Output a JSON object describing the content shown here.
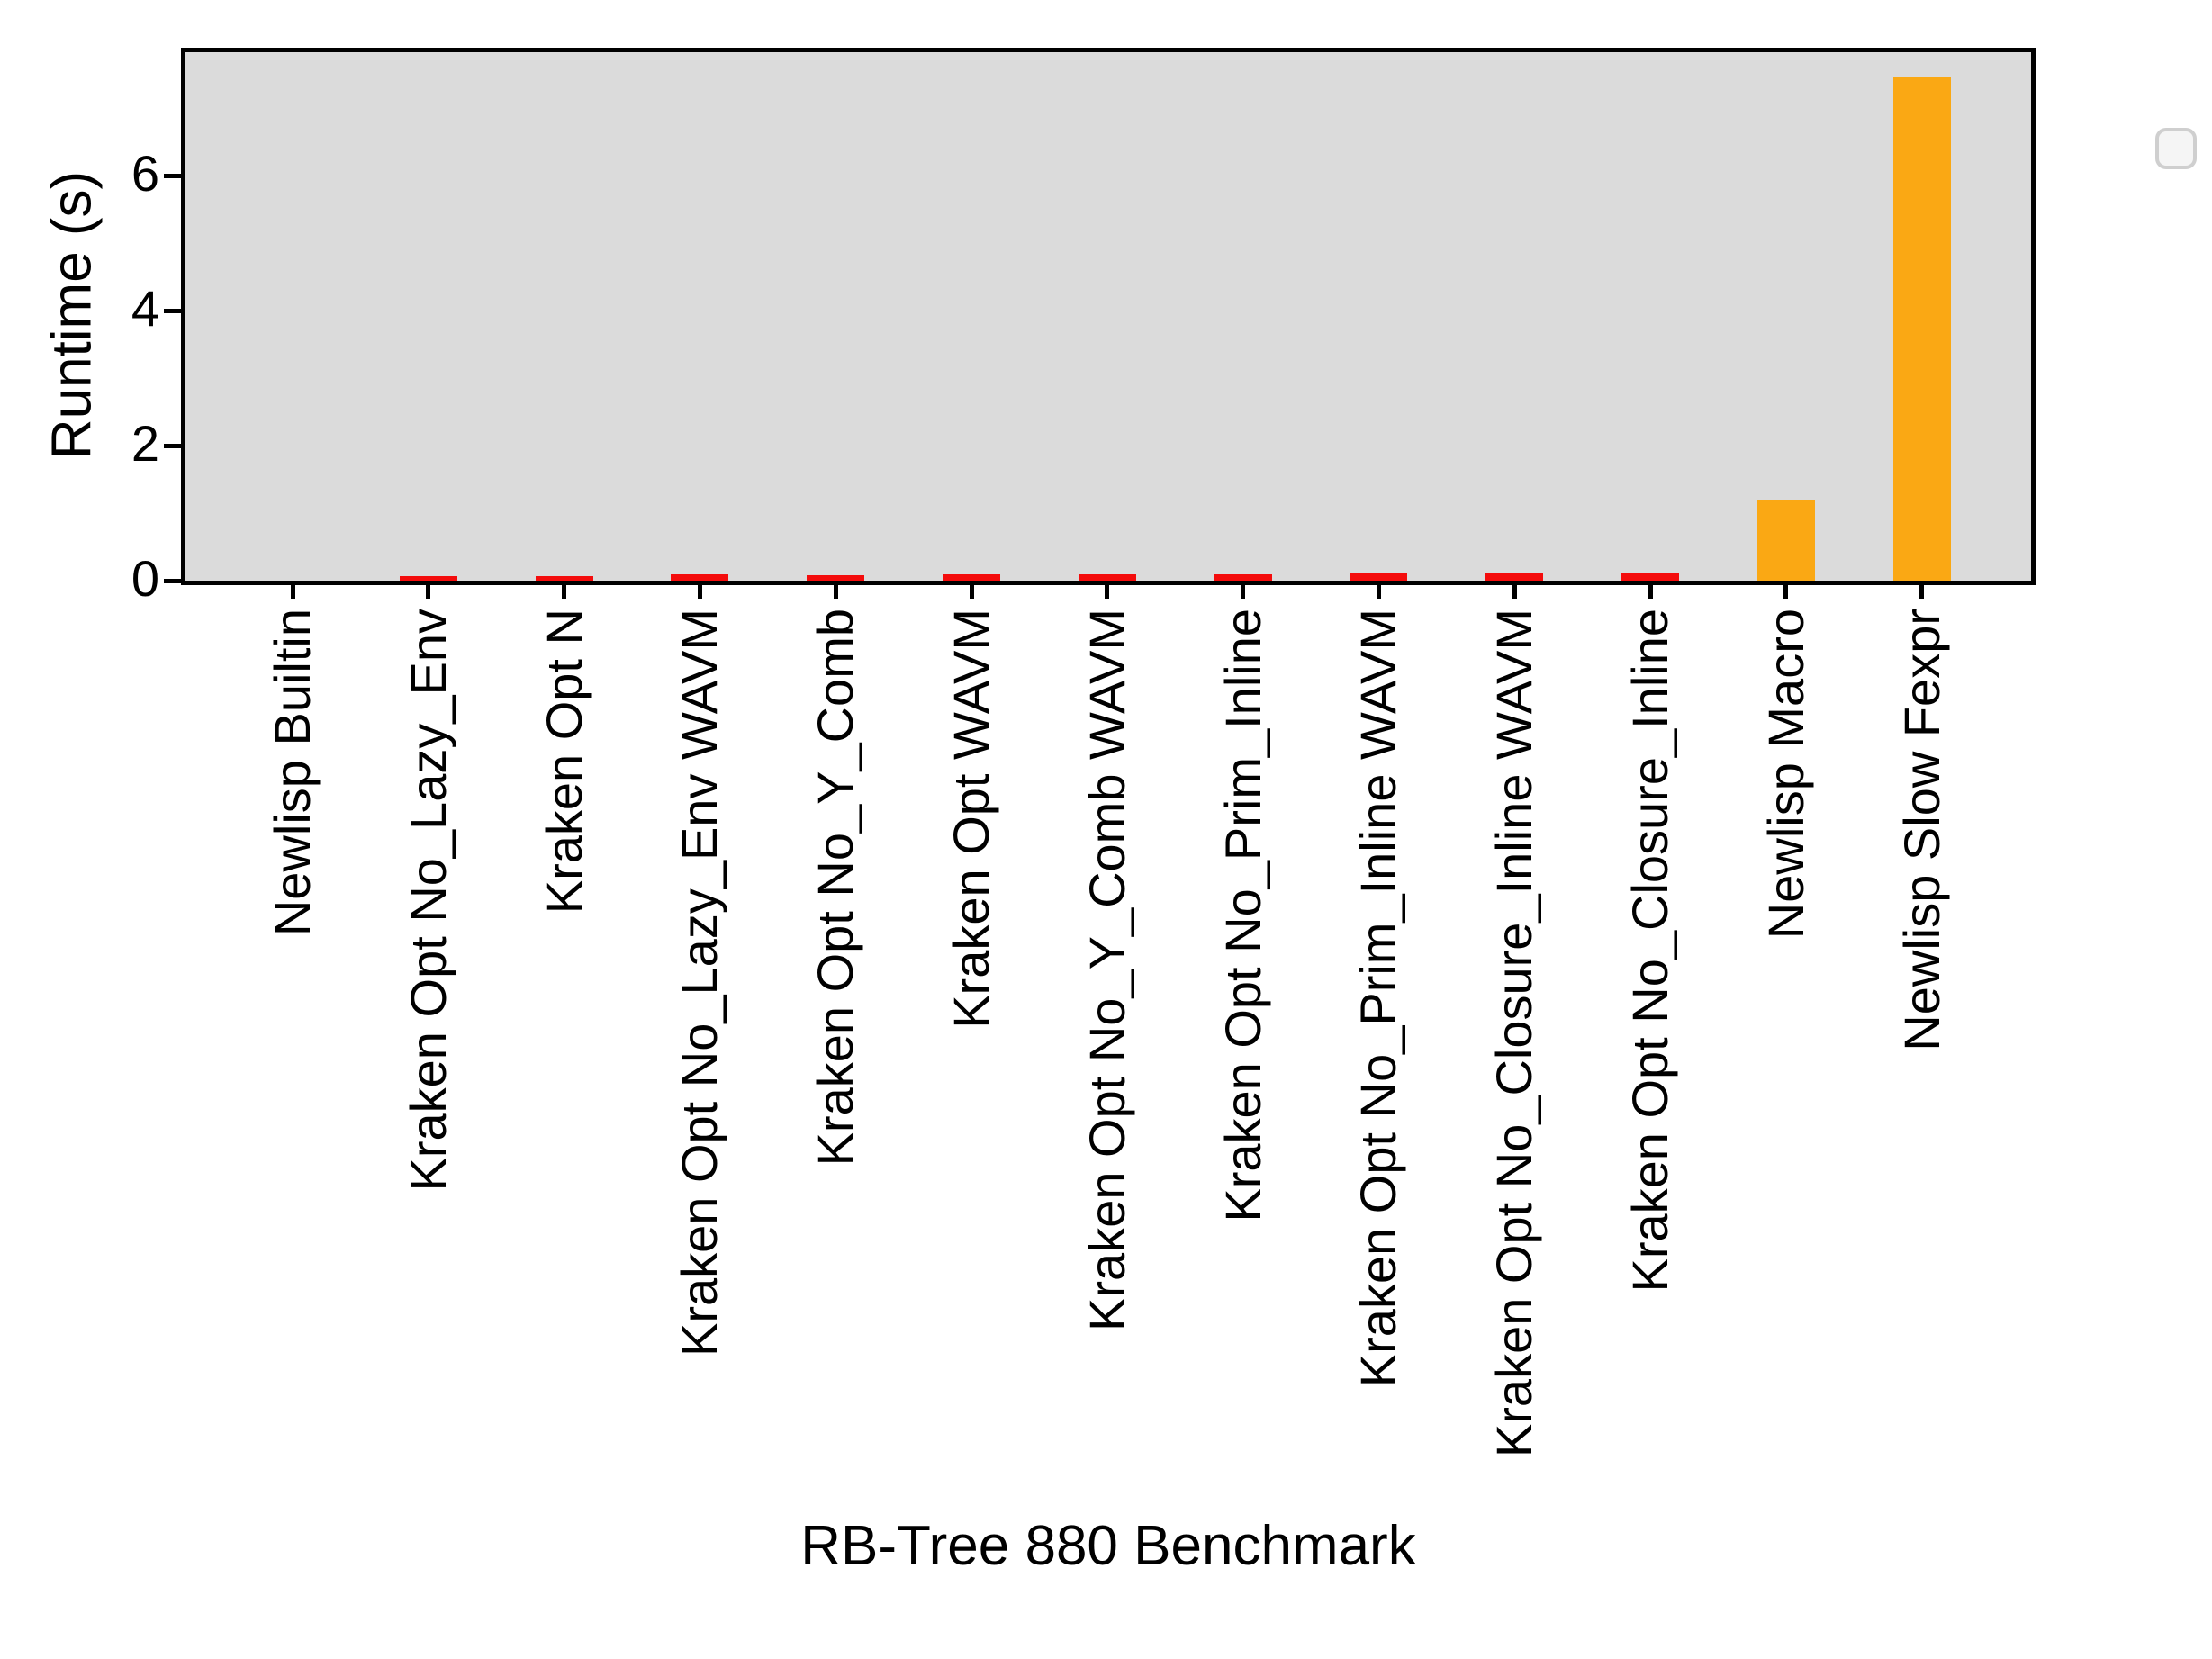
{
  "figure": {
    "background": "#ffffff",
    "plot_background": "#dbdbdb",
    "spine_color": "#000000"
  },
  "chart_data": {
    "type": "bar",
    "title": "",
    "xlabel": "RB-Tree 880 Benchmark",
    "ylabel": "Runtime (s)",
    "categories": [
      "Newlisp Builtin",
      "Kraken Opt No_Lazy_Env",
      "Kraken Opt N",
      "Kraken Opt No_Lazy_Env WAVM",
      "Kraken Opt No_Y_Comb",
      "Kraken Opt WAVM",
      "Kraken Opt No_Y_Comb WAVM",
      "Kraken Opt No_Prim_Inline",
      "Kraken Opt No_Prim_Inline WAVM",
      "Kraken Opt No_Closure_Inline WAVM",
      "Kraken Opt No_Closure_Inline",
      "Newlisp Macro",
      "Newlisp Slow Fexpr"
    ],
    "values": [
      0.0,
      0.07,
      0.07,
      0.09,
      0.08,
      0.09,
      0.09,
      0.09,
      0.1,
      0.1,
      0.1,
      1.2,
      7.47
    ],
    "bar_colors": [
      "#faa814",
      "#f40c0c",
      "#f40c0c",
      "#f40c0c",
      "#f40c0c",
      "#f40c0c",
      "#f40c0c",
      "#f40c0c",
      "#f40c0c",
      "#f40c0c",
      "#f40c0c",
      "#faa814",
      "#faa814"
    ],
    "yticks": [
      0,
      2,
      4,
      6
    ],
    "ylim": [
      0,
      7.87
    ],
    "grid": false,
    "legend": {
      "visible": true,
      "entries": [],
      "position": "upper right"
    },
    "colors": {
      "kraken_red": "#f40c0c",
      "newlisp_orange": "#faa814"
    }
  }
}
